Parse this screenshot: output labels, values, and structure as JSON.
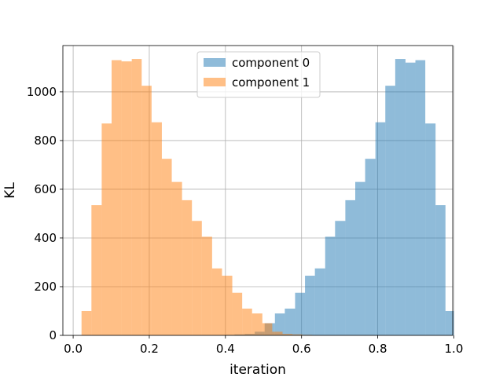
{
  "chart_data": {
    "type": "histogram",
    "title": "",
    "xlabel": "iteration",
    "ylabel": "KL",
    "xlim": [
      -0.027,
      0.997
    ],
    "ylim": [
      0,
      1190
    ],
    "grid": true,
    "legend": {
      "placement": "upper center"
    },
    "xticks": [
      0.0,
      0.2,
      0.4,
      0.6,
      0.8,
      1.0
    ],
    "xtick_labels": [
      "0.0",
      "0.2",
      "0.4",
      "0.6",
      "0.8",
      "1.0"
    ],
    "yticks": [
      0,
      200,
      400,
      600,
      800,
      1000
    ],
    "ytick_labels": [
      "0",
      "200",
      "400",
      "600",
      "800",
      "1000"
    ],
    "series": [
      {
        "name": "component 0",
        "color": "#1f77b4",
        "alpha": 0.5,
        "bins": [
          [
            0.398,
            0.424,
            2
          ],
          [
            0.424,
            0.451,
            4
          ],
          [
            0.451,
            0.477,
            6
          ],
          [
            0.477,
            0.503,
            15
          ],
          [
            0.503,
            0.53,
            50
          ],
          [
            0.53,
            0.556,
            90
          ],
          [
            0.556,
            0.583,
            110
          ],
          [
            0.583,
            0.609,
            175
          ],
          [
            0.609,
            0.635,
            245
          ],
          [
            0.635,
            0.662,
            275
          ],
          [
            0.662,
            0.688,
            405
          ],
          [
            0.688,
            0.715,
            470
          ],
          [
            0.715,
            0.741,
            555
          ],
          [
            0.741,
            0.767,
            630
          ],
          [
            0.767,
            0.794,
            725
          ],
          [
            0.794,
            0.82,
            875
          ],
          [
            0.82,
            0.846,
            1025
          ],
          [
            0.846,
            0.873,
            1135
          ],
          [
            0.873,
            0.899,
            1120
          ],
          [
            0.899,
            0.925,
            1130
          ],
          [
            0.925,
            0.952,
            870
          ],
          [
            0.952,
            0.978,
            535
          ]
        ]
      },
      {
        "name": "component 1",
        "color": "#ff7f0e",
        "alpha": 0.5,
        "bins": [
          [
            0.022,
            0.048,
            100
          ],
          [
            0.048,
            0.075,
            535
          ],
          [
            0.075,
            0.101,
            870
          ],
          [
            0.101,
            0.127,
            1130
          ],
          [
            0.127,
            0.154,
            1125
          ],
          [
            0.154,
            0.18,
            1135
          ],
          [
            0.18,
            0.206,
            1025
          ],
          [
            0.206,
            0.233,
            875
          ],
          [
            0.233,
            0.259,
            725
          ],
          [
            0.259,
            0.286,
            630
          ],
          [
            0.286,
            0.312,
            555
          ],
          [
            0.312,
            0.338,
            470
          ],
          [
            0.338,
            0.365,
            405
          ],
          [
            0.365,
            0.391,
            275
          ],
          [
            0.391,
            0.418,
            245
          ],
          [
            0.418,
            0.444,
            175
          ],
          [
            0.444,
            0.47,
            110
          ],
          [
            0.47,
            0.497,
            90
          ],
          [
            0.497,
            0.523,
            50
          ],
          [
            0.523,
            0.55,
            15
          ],
          [
            0.55,
            0.576,
            6
          ],
          [
            0.576,
            0.602,
            4
          ]
        ]
      }
    ],
    "extra_bins": {
      "component 0": [
        [
          0.952,
          0.978,
          535
        ],
        [
          0.978,
          1.0,
          100
        ]
      ],
      "component 1": [
        [
          0.602,
          0.628,
          2
        ]
      ]
    }
  }
}
